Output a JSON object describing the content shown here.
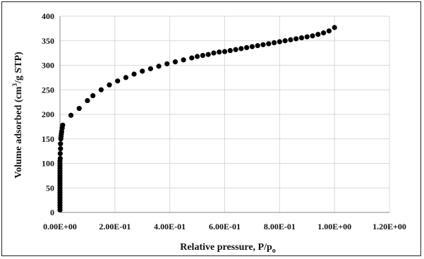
{
  "chart_data": {
    "type": "scatter",
    "title": "",
    "xlabel": "Relative pressure, P/p",
    "xlabel_subscript": "o",
    "ylabel_before_sup": "Volume adsorbed (cm",
    "ylabel_sup": "3",
    "ylabel_after_sup": "/g STP)",
    "xlim": [
      0,
      1.2
    ],
    "ylim": [
      0,
      400
    ],
    "x_ticks": [
      0,
      0.2,
      0.4,
      0.6,
      0.8,
      1.0,
      1.2
    ],
    "x_tick_labels": [
      "0.00E+00",
      "2.00E-01",
      "4.00E-01",
      "6.00E-01",
      "8.00E-01",
      "1.00E+00",
      "1.20E+00"
    ],
    "y_ticks": [
      0,
      50,
      100,
      150,
      200,
      250,
      300,
      350,
      400
    ],
    "y_tick_labels": [
      "0",
      "50",
      "100",
      "150",
      "200",
      "250",
      "300",
      "350",
      "400"
    ],
    "grid": true,
    "marker_color": "#000000",
    "series": [
      {
        "x": [
          0.0,
          0.0,
          0.0,
          0.0,
          0.0,
          0.0,
          0.0,
          0.0,
          0.0,
          0.0,
          0.0,
          0.0,
          0.0,
          0.0,
          0.0,
          0.0,
          0.0,
          0.0,
          0.0,
          0.0,
          0.0,
          0.001,
          0.001,
          0.002,
          0.002,
          0.003,
          0.004,
          0.005,
          0.006,
          0.008,
          0.01,
          0.04,
          0.07,
          0.1,
          0.12,
          0.15,
          0.18,
          0.21,
          0.24,
          0.27,
          0.3,
          0.33,
          0.36,
          0.39,
          0.42,
          0.45,
          0.48,
          0.5,
          0.52,
          0.54,
          0.56,
          0.58,
          0.6,
          0.62,
          0.64,
          0.66,
          0.68,
          0.7,
          0.72,
          0.74,
          0.76,
          0.78,
          0.8,
          0.82,
          0.84,
          0.86,
          0.88,
          0.9,
          0.92,
          0.94,
          0.96,
          0.98,
          1.0
        ],
        "y": [
          5,
          10,
          15,
          20,
          25,
          30,
          35,
          40,
          45,
          50,
          55,
          60,
          65,
          70,
          75,
          80,
          85,
          90,
          95,
          100,
          105,
          110,
          120,
          130,
          140,
          150,
          155,
          160,
          165,
          172,
          178,
          198,
          212,
          228,
          238,
          250,
          260,
          268,
          275,
          282,
          288,
          293,
          298,
          303,
          307,
          311,
          315,
          318,
          320,
          322,
          325,
          327,
          328,
          330,
          332,
          334,
          336,
          338,
          340,
          342,
          344,
          346,
          348,
          350,
          352,
          354,
          356,
          358,
          360,
          363,
          366,
          370,
          377
        ]
      }
    ]
  }
}
